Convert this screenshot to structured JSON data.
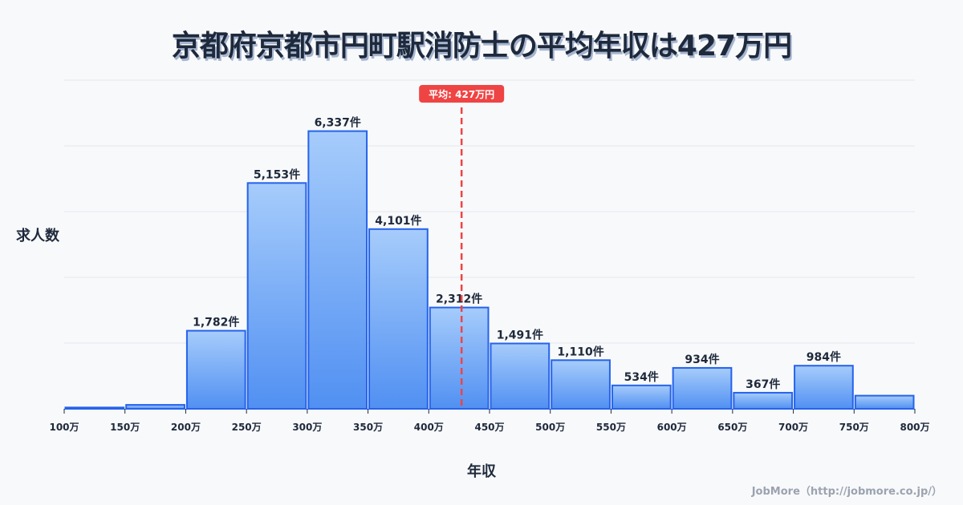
{
  "title": "京都府京都市円町駅消防士の平均年収は427万円",
  "ylabel": "求人数",
  "xlabel": "年収",
  "credit": "JobMore（http://jobmore.co.jp/）",
  "average": {
    "label": "平均: 427万円",
    "value": 427,
    "color": "#ef4444"
  },
  "colors": {
    "bar_top": "#a6ccfb",
    "bar_bottom": "#5190f2",
    "bar_stroke": "#2563eb",
    "grid": "#e2e6ee",
    "text": "#1e293b"
  },
  "chart_data": {
    "type": "bar",
    "title": "京都府京都市円町駅消防士の平均年収は427万円",
    "xlabel": "年収",
    "ylabel": "求人数",
    "ylim": [
      0,
      7500
    ],
    "grid": true,
    "bin_edges": [
      100,
      150,
      200,
      250,
      300,
      350,
      400,
      450,
      500,
      550,
      600,
      650,
      700,
      750,
      800
    ],
    "x_tick_labels": [
      "100万",
      "150万",
      "200万",
      "250万",
      "300万",
      "350万",
      "400万",
      "450万",
      "500万",
      "550万",
      "600万",
      "650万",
      "700万",
      "750万",
      "800万"
    ],
    "categories": [
      "100-150万",
      "150-200万",
      "200-250万",
      "250-300万",
      "300-350万",
      "350-400万",
      "400-450万",
      "450-500万",
      "500-550万",
      "550-600万",
      "600-650万",
      "650-700万",
      "700-750万",
      "750-800万"
    ],
    "values": [
      30,
      90,
      1782,
      5153,
      6337,
      4101,
      2312,
      1491,
      1110,
      534,
      934,
      367,
      984,
      300
    ],
    "value_labels": [
      "",
      "",
      "1,782件",
      "5,153件",
      "6,337件",
      "4,101件",
      "2,312件",
      "1,491件",
      "1,110件",
      "534件",
      "934件",
      "367件",
      "984件",
      ""
    ],
    "annotations": [
      {
        "type": "vline",
        "x": 427,
        "label": "平均: 427万円"
      }
    ]
  }
}
